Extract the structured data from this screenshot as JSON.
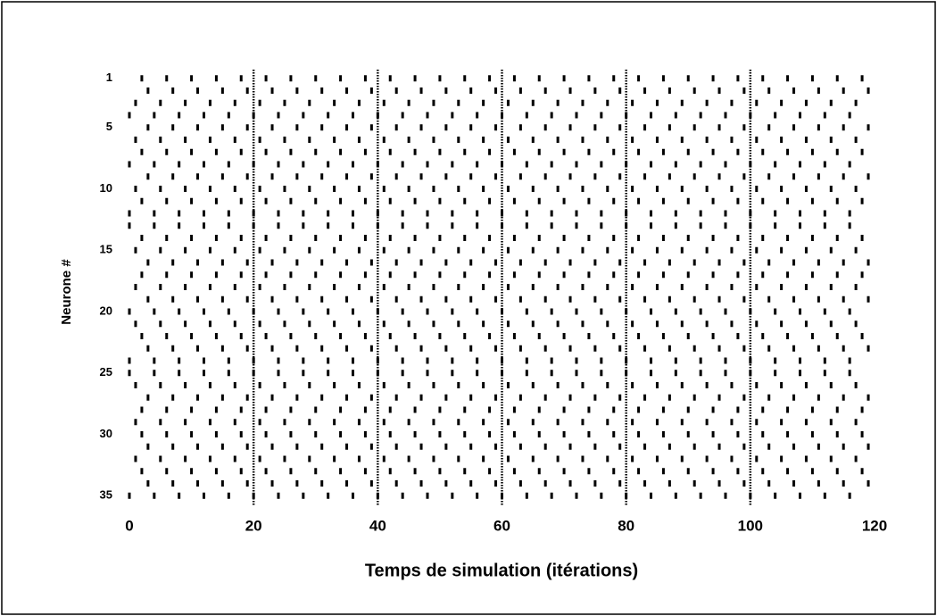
{
  "chart_data": {
    "type": "raster",
    "xlabel": "Temps de simulation (itérations)",
    "ylabel": "Neurone #",
    "xlim": [
      0,
      120
    ],
    "xticks": [
      0,
      20,
      40,
      60,
      80,
      100,
      120
    ],
    "ylim": [
      0,
      36
    ],
    "y_inverted": true,
    "yticks": [
      1,
      5,
      10,
      15,
      20,
      25,
      30,
      35
    ],
    "grid_x": true,
    "color": "#000000",
    "neurons": [
      1,
      2,
      3,
      4,
      5,
      6,
      7,
      8,
      9,
      10,
      11,
      12,
      13,
      14,
      15,
      16,
      17,
      18,
      19,
      20,
      21,
      22,
      23,
      24,
      25,
      26,
      27,
      28,
      29,
      30,
      31,
      32,
      33,
      34,
      35
    ],
    "spike_times": [
      [
        2,
        6,
        10,
        14,
        18,
        22,
        26,
        30,
        34,
        38,
        42,
        46,
        50,
        54,
        58,
        62,
        66,
        70,
        74,
        78,
        82,
        86,
        90,
        94,
        98,
        102,
        106,
        110,
        114,
        118
      ],
      [
        3,
        7,
        11,
        15,
        19,
        23,
        27,
        31,
        35,
        39,
        43,
        47,
        51,
        55,
        59,
        63,
        67,
        71,
        75,
        79,
        83,
        87,
        91,
        95,
        99,
        103,
        107,
        111,
        115,
        119
      ],
      [
        1,
        5,
        9,
        13,
        17,
        21,
        25,
        29,
        33,
        37,
        41,
        45,
        49,
        53,
        57,
        61,
        65,
        69,
        73,
        77,
        81,
        85,
        89,
        93,
        97,
        101,
        105,
        109,
        113,
        117
      ],
      [
        0,
        4,
        8,
        12,
        16,
        20,
        24,
        28,
        32,
        36,
        40,
        44,
        48,
        52,
        56,
        60,
        64,
        68,
        72,
        76,
        80,
        84,
        88,
        92,
        96,
        100,
        104,
        108,
        112,
        116
      ],
      [
        3,
        7,
        11,
        15,
        19,
        23,
        27,
        31,
        35,
        39,
        43,
        47,
        51,
        55,
        59,
        63,
        67,
        71,
        75,
        79,
        83,
        87,
        91,
        95,
        99,
        103,
        107,
        111,
        115,
        119
      ],
      [
        1,
        5,
        9,
        13,
        17,
        21,
        25,
        29,
        33,
        37,
        41,
        45,
        49,
        53,
        57,
        61,
        65,
        69,
        73,
        77,
        81,
        85,
        89,
        93,
        97,
        101,
        105,
        109,
        113,
        117
      ],
      [
        2,
        6,
        10,
        14,
        18,
        22,
        26,
        30,
        34,
        38,
        42,
        46,
        50,
        54,
        58,
        62,
        66,
        70,
        74,
        78,
        82,
        86,
        90,
        94,
        98,
        102,
        106,
        110,
        114,
        118
      ],
      [
        0,
        4,
        8,
        12,
        16,
        20,
        24,
        28,
        32,
        36,
        40,
        44,
        48,
        52,
        56,
        60,
        64,
        68,
        72,
        76,
        80,
        84,
        88,
        92,
        96,
        100,
        104,
        108,
        112,
        116
      ],
      [
        3,
        7,
        11,
        15,
        19,
        23,
        27,
        31,
        35,
        39,
        43,
        47,
        51,
        55,
        59,
        63,
        67,
        71,
        75,
        79,
        83,
        87,
        91,
        95,
        99,
        103,
        107,
        111,
        115,
        119
      ],
      [
        1,
        5,
        9,
        13,
        17,
        21,
        25,
        29,
        33,
        37,
        41,
        45,
        49,
        53,
        57,
        61,
        65,
        69,
        73,
        77,
        81,
        85,
        89,
        93,
        97,
        101,
        105,
        109,
        113,
        117
      ],
      [
        2,
        6,
        10,
        14,
        18,
        22,
        26,
        30,
        34,
        38,
        42,
        46,
        50,
        54,
        58,
        62,
        66,
        70,
        74,
        78,
        82,
        86,
        90,
        94,
        98,
        102,
        106,
        110,
        114,
        118
      ],
      [
        0,
        4,
        8,
        12,
        16,
        20,
        24,
        28,
        32,
        36,
        40,
        44,
        48,
        52,
        56,
        60,
        64,
        68,
        72,
        76,
        80,
        84,
        88,
        92,
        96,
        100,
        104,
        108,
        112,
        116
      ],
      [
        0,
        4,
        8,
        12,
        16,
        20,
        24,
        28,
        32,
        36,
        40,
        44,
        48,
        52,
        56,
        60,
        64,
        68,
        72,
        76,
        80,
        84,
        88,
        92,
        96,
        100,
        104,
        108,
        112,
        116
      ],
      [
        2,
        6,
        10,
        14,
        18,
        22,
        26,
        30,
        34,
        38,
        42,
        46,
        50,
        54,
        58,
        62,
        66,
        70,
        74,
        78,
        82,
        86,
        90,
        94,
        98,
        102,
        106,
        110,
        114,
        118
      ],
      [
        1,
        5,
        9,
        13,
        17,
        21,
        25,
        29,
        33,
        37,
        41,
        45,
        49,
        53,
        57,
        61,
        65,
        69,
        73,
        77,
        81,
        85,
        89,
        93,
        97,
        101,
        105,
        109,
        113,
        117
      ],
      [
        3,
        7,
        11,
        15,
        19,
        23,
        27,
        31,
        35,
        39,
        43,
        47,
        51,
        55,
        59,
        63,
        67,
        71,
        75,
        79,
        83,
        87,
        91,
        95,
        99,
        103,
        107,
        111,
        115,
        119
      ],
      [
        2,
        6,
        10,
        14,
        18,
        22,
        26,
        30,
        34,
        38,
        42,
        46,
        50,
        54,
        58,
        62,
        66,
        70,
        74,
        78,
        82,
        86,
        90,
        94,
        98,
        102,
        106,
        110,
        114,
        118
      ],
      [
        1,
        5,
        9,
        13,
        17,
        21,
        25,
        29,
        33,
        37,
        41,
        45,
        49,
        53,
        57,
        61,
        65,
        69,
        73,
        77,
        81,
        85,
        89,
        93,
        97,
        101,
        105,
        109,
        113,
        117
      ],
      [
        3,
        7,
        11,
        15,
        19,
        23,
        27,
        31,
        35,
        39,
        43,
        47,
        51,
        55,
        59,
        63,
        67,
        71,
        75,
        79,
        83,
        87,
        91,
        95,
        99,
        103,
        107,
        111,
        115,
        119
      ],
      [
        0,
        4,
        8,
        12,
        16,
        20,
        24,
        28,
        32,
        36,
        40,
        44,
        48,
        52,
        56,
        60,
        64,
        68,
        72,
        76,
        80,
        84,
        88,
        92,
        96,
        100,
        104,
        108,
        112,
        116
      ],
      [
        1,
        5,
        9,
        13,
        17,
        21,
        25,
        29,
        33,
        37,
        41,
        45,
        49,
        53,
        57,
        61,
        65,
        69,
        73,
        77,
        81,
        85,
        89,
        93,
        97,
        101,
        105,
        109,
        113,
        117
      ],
      [
        2,
        6,
        10,
        14,
        18,
        22,
        26,
        30,
        34,
        38,
        42,
        46,
        50,
        54,
        58,
        62,
        66,
        70,
        74,
        78,
        82,
        86,
        90,
        94,
        98,
        102,
        106,
        110,
        114,
        118
      ],
      [
        3,
        7,
        11,
        15,
        19,
        23,
        27,
        31,
        35,
        39,
        43,
        47,
        51,
        55,
        59,
        63,
        67,
        71,
        75,
        79,
        83,
        87,
        91,
        95,
        99,
        103,
        107,
        111,
        115,
        119
      ],
      [
        0,
        4,
        8,
        12,
        16,
        20,
        24,
        28,
        32,
        36,
        40,
        44,
        48,
        52,
        56,
        60,
        64,
        68,
        72,
        76,
        80,
        84,
        88,
        92,
        96,
        100,
        104,
        108,
        112,
        116
      ],
      [
        0,
        4,
        8,
        12,
        16,
        20,
        24,
        28,
        32,
        36,
        40,
        44,
        48,
        52,
        56,
        60,
        64,
        68,
        72,
        76,
        80,
        84,
        88,
        92,
        96,
        100,
        104,
        108,
        112,
        116
      ],
      [
        1,
        5,
        9,
        13,
        17,
        21,
        25,
        29,
        33,
        37,
        41,
        45,
        49,
        53,
        57,
        61,
        65,
        69,
        73,
        77,
        81,
        85,
        89,
        93,
        97,
        101,
        105,
        109,
        113,
        117
      ],
      [
        3,
        7,
        11,
        15,
        19,
        23,
        27,
        31,
        35,
        39,
        43,
        47,
        51,
        55,
        59,
        63,
        67,
        71,
        75,
        79,
        83,
        87,
        91,
        95,
        99,
        103,
        107,
        111,
        115,
        119
      ],
      [
        2,
        6,
        10,
        14,
        18,
        22,
        26,
        30,
        34,
        38,
        42,
        46,
        50,
        54,
        58,
        62,
        66,
        70,
        74,
        78,
        82,
        86,
        90,
        94,
        98,
        102,
        106,
        110,
        114,
        118
      ],
      [
        1,
        5,
        9,
        13,
        17,
        21,
        25,
        29,
        33,
        37,
        41,
        45,
        49,
        53,
        57,
        61,
        65,
        69,
        73,
        77,
        81,
        85,
        89,
        93,
        97,
        101,
        105,
        109,
        113,
        117
      ],
      [
        2,
        6,
        10,
        14,
        18,
        22,
        26,
        30,
        34,
        38,
        42,
        46,
        50,
        54,
        58,
        62,
        66,
        70,
        74,
        78,
        82,
        86,
        90,
        94,
        98,
        102,
        106,
        110,
        114,
        118
      ],
      [
        3,
        7,
        11,
        15,
        19,
        23,
        27,
        31,
        35,
        39,
        43,
        47,
        51,
        55,
        59,
        63,
        67,
        71,
        75,
        79,
        83,
        87,
        91,
        95,
        99,
        103,
        107,
        111,
        115,
        119
      ],
      [
        1,
        5,
        9,
        13,
        17,
        21,
        25,
        29,
        33,
        37,
        41,
        45,
        49,
        53,
        57,
        61,
        65,
        69,
        73,
        77,
        81,
        85,
        89,
        93,
        97,
        101,
        105,
        109,
        113,
        117
      ],
      [
        2,
        6,
        10,
        14,
        18,
        22,
        26,
        30,
        34,
        38,
        42,
        46,
        50,
        54,
        58,
        62,
        66,
        70,
        74,
        78,
        82,
        86,
        90,
        94,
        98,
        102,
        106,
        110,
        114,
        118
      ],
      [
        3,
        7,
        11,
        15,
        19,
        23,
        27,
        31,
        35,
        39,
        43,
        47,
        51,
        55,
        59,
        63,
        67,
        71,
        75,
        79,
        83,
        87,
        91,
        95,
        99,
        103,
        107,
        111,
        115,
        119
      ],
      [
        0,
        4,
        8,
        12,
        16,
        20,
        24,
        28,
        32,
        36,
        40,
        44,
        48,
        52,
        56,
        60,
        64,
        68,
        72,
        76,
        80,
        84,
        88,
        92,
        96,
        100,
        104,
        108,
        112,
        116
      ]
    ]
  }
}
